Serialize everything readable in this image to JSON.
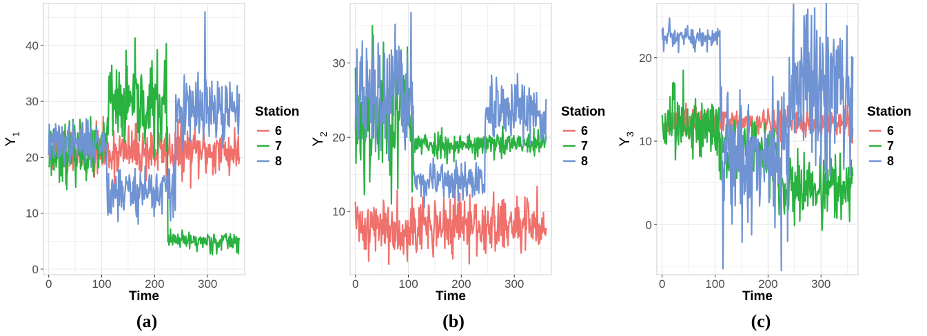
{
  "colors": {
    "6": "#f0706b",
    "7": "#2ab240",
    "8": "#6f93d3",
    "grid": "#e6e6e6",
    "border": "#cccccc"
  },
  "chart_data": [
    {
      "type": "line",
      "panel_label": "(a)",
      "xlabel": "Time",
      "ylabel_main": "Y",
      "ylabel_sub": "1",
      "xlim": [
        -10,
        370
      ],
      "ylim": [
        -1,
        47.5
      ],
      "xticks": [
        0,
        100,
        200,
        300
      ],
      "yticks": [
        0,
        10,
        20,
        30,
        40
      ],
      "legend": {
        "title": "Station",
        "position": "right"
      },
      "series": [
        {
          "name": "6",
          "segments": [
            {
              "x0": 0,
              "x1": 360,
              "mean": 21,
              "noise": 2.3
            }
          ],
          "seed": 11
        },
        {
          "name": "7",
          "segments": [
            {
              "x0": 0,
              "x1": 110,
              "mean": 21,
              "noise": 2.5
            },
            {
              "x0": 110,
              "x1": 225,
              "mean": 29,
              "noise": 4.0
            },
            {
              "x0": 225,
              "x1": 360,
              "mean": 5,
              "noise": 0.9
            }
          ],
          "seed": 23,
          "spikes": [
            {
              "x": 222,
              "y": 40.3
            }
          ]
        },
        {
          "name": "8",
          "segments": [
            {
              "x0": 0,
              "x1": 110,
              "mean": 22.5,
              "noise": 1.8
            },
            {
              "x0": 110,
              "x1": 240,
              "mean": 14,
              "noise": 2.5
            },
            {
              "x0": 240,
              "x1": 360,
              "mean": 28,
              "noise": 3.0
            }
          ],
          "seed": 37,
          "spikes": [
            {
              "x": 295,
              "y": 46
            }
          ]
        }
      ]
    },
    {
      "type": "line",
      "panel_label": "(b)",
      "xlabel": "Time",
      "ylabel_main": "Y",
      "ylabel_sub": "2",
      "xlim": [
        -10,
        370
      ],
      "ylim": [
        1.5,
        38
      ],
      "xticks": [
        0,
        100,
        200,
        300
      ],
      "yticks": [
        10,
        20,
        30
      ],
      "legend": {
        "title": "Station",
        "position": "right"
      },
      "series": [
        {
          "name": "6",
          "segments": [
            {
              "x0": 0,
              "x1": 360,
              "mean": 8,
              "noise": 2.0
            }
          ],
          "seed": 41
        },
        {
          "name": "7",
          "segments": [
            {
              "x0": 0,
              "x1": 110,
              "mean": 23,
              "noise": 4.5
            },
            {
              "x0": 110,
              "x1": 360,
              "mean": 19,
              "noise": 0.9
            }
          ],
          "seed": 53,
          "spikes": [
            {
              "x": 32,
              "y": 35
            }
          ]
        },
        {
          "name": "8",
          "segments": [
            {
              "x0": 0,
              "x1": 110,
              "mean": 25,
              "noise": 4.0
            },
            {
              "x0": 110,
              "x1": 245,
              "mean": 14,
              "noise": 1.2
            },
            {
              "x0": 245,
              "x1": 360,
              "mean": 23,
              "noise": 2.0
            }
          ],
          "seed": 67,
          "spikes": [
            {
              "x": 105,
              "y": 36.8
            }
          ]
        }
      ]
    },
    {
      "type": "line",
      "panel_label": "(c)",
      "xlabel": "Time",
      "ylabel_main": "Y",
      "ylabel_sub": "3",
      "xlim": [
        -10,
        370
      ],
      "ylim": [
        -6,
        26.5
      ],
      "xticks": [
        0,
        100,
        200,
        300
      ],
      "yticks": [
        0,
        10,
        20
      ],
      "legend": {
        "title": "Station",
        "position": "right"
      },
      "series": [
        {
          "name": "6",
          "segments": [
            {
              "x0": 0,
              "x1": 360,
              "mean": 12.2,
              "noise": 1.0
            }
          ],
          "seed": 71
        },
        {
          "name": "7",
          "segments": [
            {
              "x0": 0,
              "x1": 110,
              "mean": 12,
              "noise": 2.0
            },
            {
              "x0": 110,
              "x1": 220,
              "mean": 8.5,
              "noise": 2.0
            },
            {
              "x0": 220,
              "x1": 360,
              "mean": 4.5,
              "noise": 2.0
            }
          ],
          "seed": 83,
          "spikes": [
            {
              "x": 40,
              "y": 18.5
            }
          ]
        },
        {
          "name": "8",
          "segments": [
            {
              "x0": 0,
              "x1": 110,
              "mean": 22.3,
              "noise": 0.8
            },
            {
              "x0": 110,
              "x1": 240,
              "mean": 8,
              "noise": 4.5
            },
            {
              "x0": 240,
              "x1": 360,
              "mean": 16,
              "noise": 4.5
            }
          ],
          "seed": 97,
          "spikes": [
            {
              "x": 225,
              "y": -5.5
            },
            {
              "x": 275,
              "y": 25.8
            }
          ]
        }
      ]
    }
  ]
}
